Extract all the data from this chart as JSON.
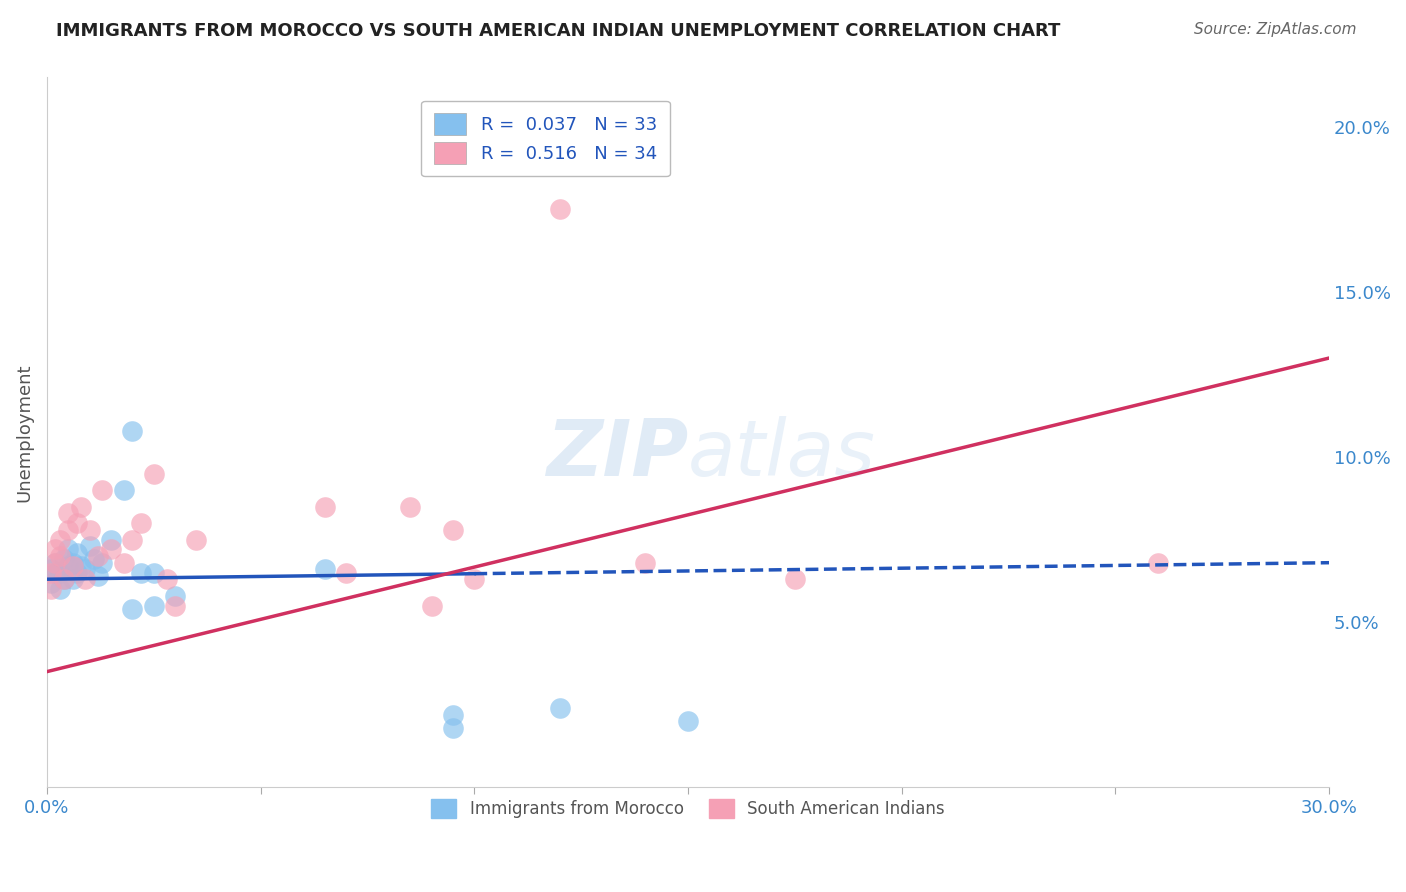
{
  "title": "IMMIGRANTS FROM MOROCCO VS SOUTH AMERICAN INDIAN UNEMPLOYMENT CORRELATION CHART",
  "source": "Source: ZipAtlas.com",
  "ylabel": "Unemployment",
  "xlim": [
    0.0,
    0.3
  ],
  "ylim": [
    0.0,
    0.215
  ],
  "xticks": [
    0.0,
    0.05,
    0.1,
    0.15,
    0.2,
    0.25,
    0.3
  ],
  "yticks": [
    0.05,
    0.1,
    0.15,
    0.2
  ],
  "ytick_labels": [
    "5.0%",
    "10.0%",
    "15.0%",
    "20.0%"
  ],
  "xtick_labels": [
    "0.0%",
    "",
    "",
    "",
    "",
    "",
    "30.0%"
  ],
  "blue_line_start_x": 0.0,
  "blue_line_solid_end_x": 0.1,
  "blue_line_end_x": 0.3,
  "blue_line_start_y": 0.063,
  "blue_line_end_y": 0.068,
  "pink_line_start_x": 0.0,
  "pink_line_end_x": 0.3,
  "pink_line_start_y": 0.035,
  "pink_line_end_y": 0.13,
  "series": [
    {
      "label": "Immigrants from Morocco",
      "R": 0.037,
      "N": 33,
      "color": "#85C0EE",
      "edge_color": "#85C0EE",
      "line_color": "#2255BB",
      "line_style_solid": "solid",
      "line_style_dashed": "dashed",
      "x": [
        0.001,
        0.001,
        0.002,
        0.002,
        0.003,
        0.003,
        0.004,
        0.004,
        0.005,
        0.005,
        0.006,
        0.006,
        0.007,
        0.007,
        0.008,
        0.009,
        0.01,
        0.011,
        0.012,
        0.013,
        0.015,
        0.018,
        0.02,
        0.022,
        0.025,
        0.02,
        0.025,
        0.03,
        0.065,
        0.095,
        0.095,
        0.12,
        0.15
      ],
      "y": [
        0.066,
        0.062,
        0.065,
        0.068,
        0.06,
        0.065,
        0.069,
        0.063,
        0.067,
        0.072,
        0.063,
        0.068,
        0.065,
        0.071,
        0.067,
        0.066,
        0.073,
        0.069,
        0.064,
        0.068,
        0.075,
        0.09,
        0.108,
        0.065,
        0.065,
        0.054,
        0.055,
        0.058,
        0.066,
        0.022,
        0.018,
        0.024,
        0.02
      ]
    },
    {
      "label": "South American Indians",
      "R": 0.516,
      "N": 34,
      "color": "#F5A0B5",
      "edge_color": "#F5A0B5",
      "line_color": "#D03060",
      "line_style": "solid",
      "x": [
        0.001,
        0.001,
        0.002,
        0.002,
        0.003,
        0.003,
        0.004,
        0.005,
        0.005,
        0.006,
        0.007,
        0.008,
        0.009,
        0.01,
        0.012,
        0.013,
        0.015,
        0.018,
        0.02,
        0.022,
        0.025,
        0.028,
        0.03,
        0.035,
        0.065,
        0.07,
        0.085,
        0.09,
        0.095,
        0.1,
        0.12,
        0.14,
        0.175,
        0.26
      ],
      "y": [
        0.06,
        0.065,
        0.068,
        0.072,
        0.07,
        0.075,
        0.063,
        0.078,
        0.083,
        0.067,
        0.08,
        0.085,
        0.063,
        0.078,
        0.07,
        0.09,
        0.072,
        0.068,
        0.075,
        0.08,
        0.095,
        0.063,
        0.055,
        0.075,
        0.085,
        0.065,
        0.085,
        0.055,
        0.078,
        0.063,
        0.175,
        0.068,
        0.063,
        0.068
      ]
    }
  ],
  "background_color": "#FFFFFF",
  "grid_color": "#CCCCCC",
  "title_color": "#222222",
  "tick_label_color_x": "#3B88CC",
  "tick_label_color_y": "#3B88CC"
}
